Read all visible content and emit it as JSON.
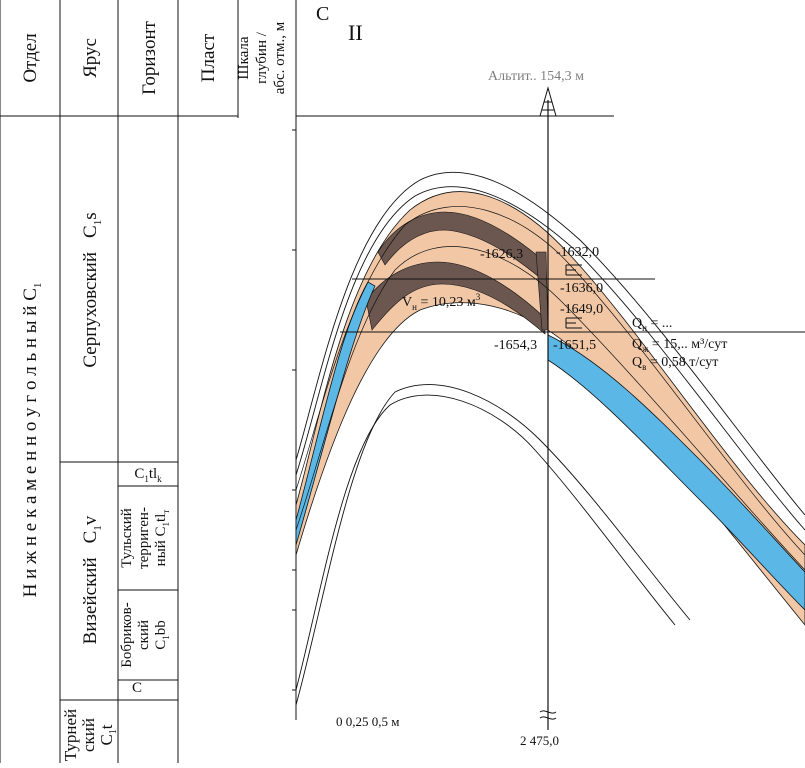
{
  "header": {
    "col_otdel": "Отдел",
    "col_yarus": "Ярус",
    "col_gorizont": "Горизонт",
    "col_plast": "Пласт",
    "col_scale_line1": "Шкала",
    "col_scale_line2": "глубин /",
    "col_scale_line3": "абс. отм., м"
  },
  "stratigraphy": {
    "otdel": "Н и ж н е к а м е н н о у г о л ь н ы й  C",
    "otdel_sub": "1",
    "serpukhov": "Серпуховский",
    "serpukhov_idx": "C",
    "serpukhov_sub": "1",
    "serpukhov_tail": "s",
    "vize": "Визейский",
    "vize_idx": "C",
    "vize_sub": "1",
    "vize_tail": "v",
    "tourney_line1": "Турней",
    "tourney_line2": "ский",
    "tourney_idx": "C",
    "tourney_sub": "1",
    "tourney_tail": "t",
    "tl_k_label": "C",
    "tl_k_sub1": "1",
    "tl_k_mid": "tl",
    "tl_k_sub2": "k",
    "tulsky_line1": "Тульский",
    "tulsky_line2": "терриген-",
    "tulsky_line3": "ный C",
    "tulsky_sub1": "1",
    "tulsky_tail": "tl",
    "tulsky_sub2": "т",
    "bobrik_line1": "Бобриков-",
    "bobrik_line2": "ский",
    "bobrik_line3": "C",
    "bobrik_sub": "1",
    "bobrik_tail": "bb",
    "partial_c": "C"
  },
  "section": {
    "roman": "II",
    "top_left_char": "С",
    "top_title_partial": "Альтит.. 154,3 м",
    "well_symbol": "well-tower-icon",
    "depth_tops": [
      "-1626,3",
      "-1632,0",
      "-1636,0",
      "-1649,0",
      "-1654,3",
      "-1651,5"
    ],
    "volume_label": "V",
    "volume_sub": "н",
    "volume_value": " = 10,23 м",
    "volume_sup": "3",
    "q1_label": "Q",
    "q1_sub": "н",
    "q1_value": " = ...",
    "q2_label": "Q",
    "q2_sub": "ж",
    "q2_value": " = 15,.. м³/сут",
    "q3_label": "Q",
    "q3_sub": "в",
    "q3_value": " = 0,58 т/сут",
    "scale_text": "0    0,25 0,5    м",
    "bottom_depth": "2 475,0",
    "small_c": "C"
  },
  "colors": {
    "tan": "#f2c7a6",
    "dark": "#6b5650",
    "blue": "#5ab7e6",
    "line": "#111111",
    "bg": "#ffffff"
  }
}
